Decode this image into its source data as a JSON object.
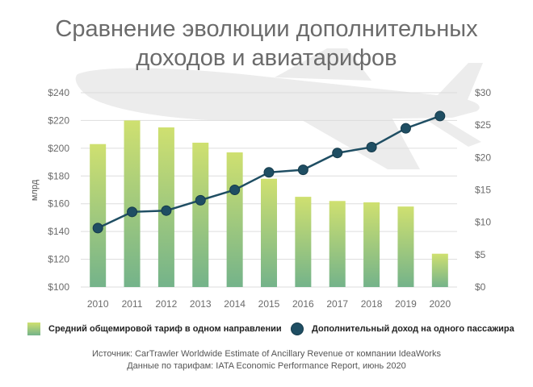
{
  "title_line1": "Сравнение эволюции дополнительных",
  "title_line2": "доходов и авиатарифов",
  "chart_data": {
    "type": "bar",
    "categories": [
      "2010",
      "2011",
      "2012",
      "2013",
      "2014",
      "2015",
      "2016",
      "2017",
      "2018",
      "2019",
      "2020"
    ],
    "series": [
      {
        "name": "Средний общемировой тариф в одном направлении",
        "type": "bar",
        "axis": "left",
        "values": [
          203,
          220,
          215,
          204,
          197,
          178,
          165,
          162,
          161,
          158,
          124
        ]
      },
      {
        "name": "Дополнительный доход на одного пассажира",
        "type": "line",
        "axis": "right",
        "values": [
          9.1,
          11.6,
          11.8,
          13.4,
          15.0,
          17.7,
          18.1,
          20.7,
          21.6,
          24.5,
          26.4
        ]
      }
    ],
    "left_axis": {
      "label": "млрд",
      "ylim": [
        100,
        240
      ],
      "ticks": [
        "$100",
        "$120",
        "$140",
        "$160",
        "$180",
        "$200",
        "$220",
        "$240"
      ],
      "tick_values": [
        100,
        120,
        140,
        160,
        180,
        200,
        220,
        240
      ]
    },
    "right_axis": {
      "ylim": [
        0,
        30
      ],
      "ticks": [
        "$0",
        "$5",
        "$10",
        "$15",
        "$20",
        "$25",
        "$30"
      ],
      "tick_values": [
        0,
        5,
        10,
        15,
        20,
        25,
        30
      ]
    },
    "grid": true,
    "legend_position": "bottom",
    "colors": {
      "bar_top": "#cfe070",
      "bar_bottom": "#74b38a",
      "line": "#1f4e63",
      "grid": "#dddddd",
      "background_plane": "#ececec"
    }
  },
  "legend": {
    "bars": "Средний общемировой тариф в одном направлении",
    "line": "Дополнительный доход на одного пассажира"
  },
  "source_line1": "Источник: CarTrawler Worldwide Estimate of Ancillary Revenue от компании IdeaWorks",
  "source_line2": "Данные по тарифам: IATA Economic Performance Report, июнь 2020"
}
